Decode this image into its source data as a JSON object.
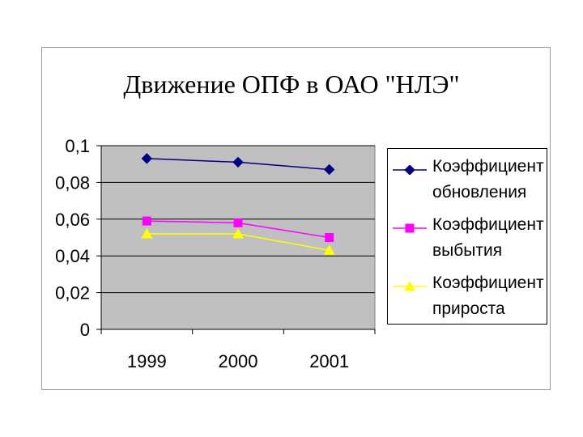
{
  "chart_data": {
    "type": "line",
    "title": "Движение ОПФ в ОАО \"НЛЭ\"",
    "categories": [
      "1999",
      "2000",
      "2001"
    ],
    "series": [
      {
        "name": "Коэффициент обновления",
        "values": [
          0.093,
          0.091,
          0.087
        ],
        "color": "#000080",
        "marker": "diamond"
      },
      {
        "name": "Коэффициент выбытия",
        "values": [
          0.059,
          0.058,
          0.05
        ],
        "color": "#ff00ff",
        "marker": "square"
      },
      {
        "name": "Коэффициент прироста",
        "values": [
          0.052,
          0.052,
          0.043
        ],
        "color": "#ffff00",
        "marker": "triangle"
      }
    ],
    "ylim": [
      0,
      0.1
    ],
    "yticks": [
      "0",
      "0,02",
      "0,04",
      "0,06",
      "0,08",
      "0,1"
    ],
    "grid": true,
    "plot_background": "#c0c0c0",
    "legend": "right"
  },
  "legend": {
    "items": [
      {
        "label": "Коэффициент\nобновления"
      },
      {
        "label": "Коэффициент\nвыбытия"
      },
      {
        "label": "Коэффициент\nприроста"
      }
    ]
  }
}
